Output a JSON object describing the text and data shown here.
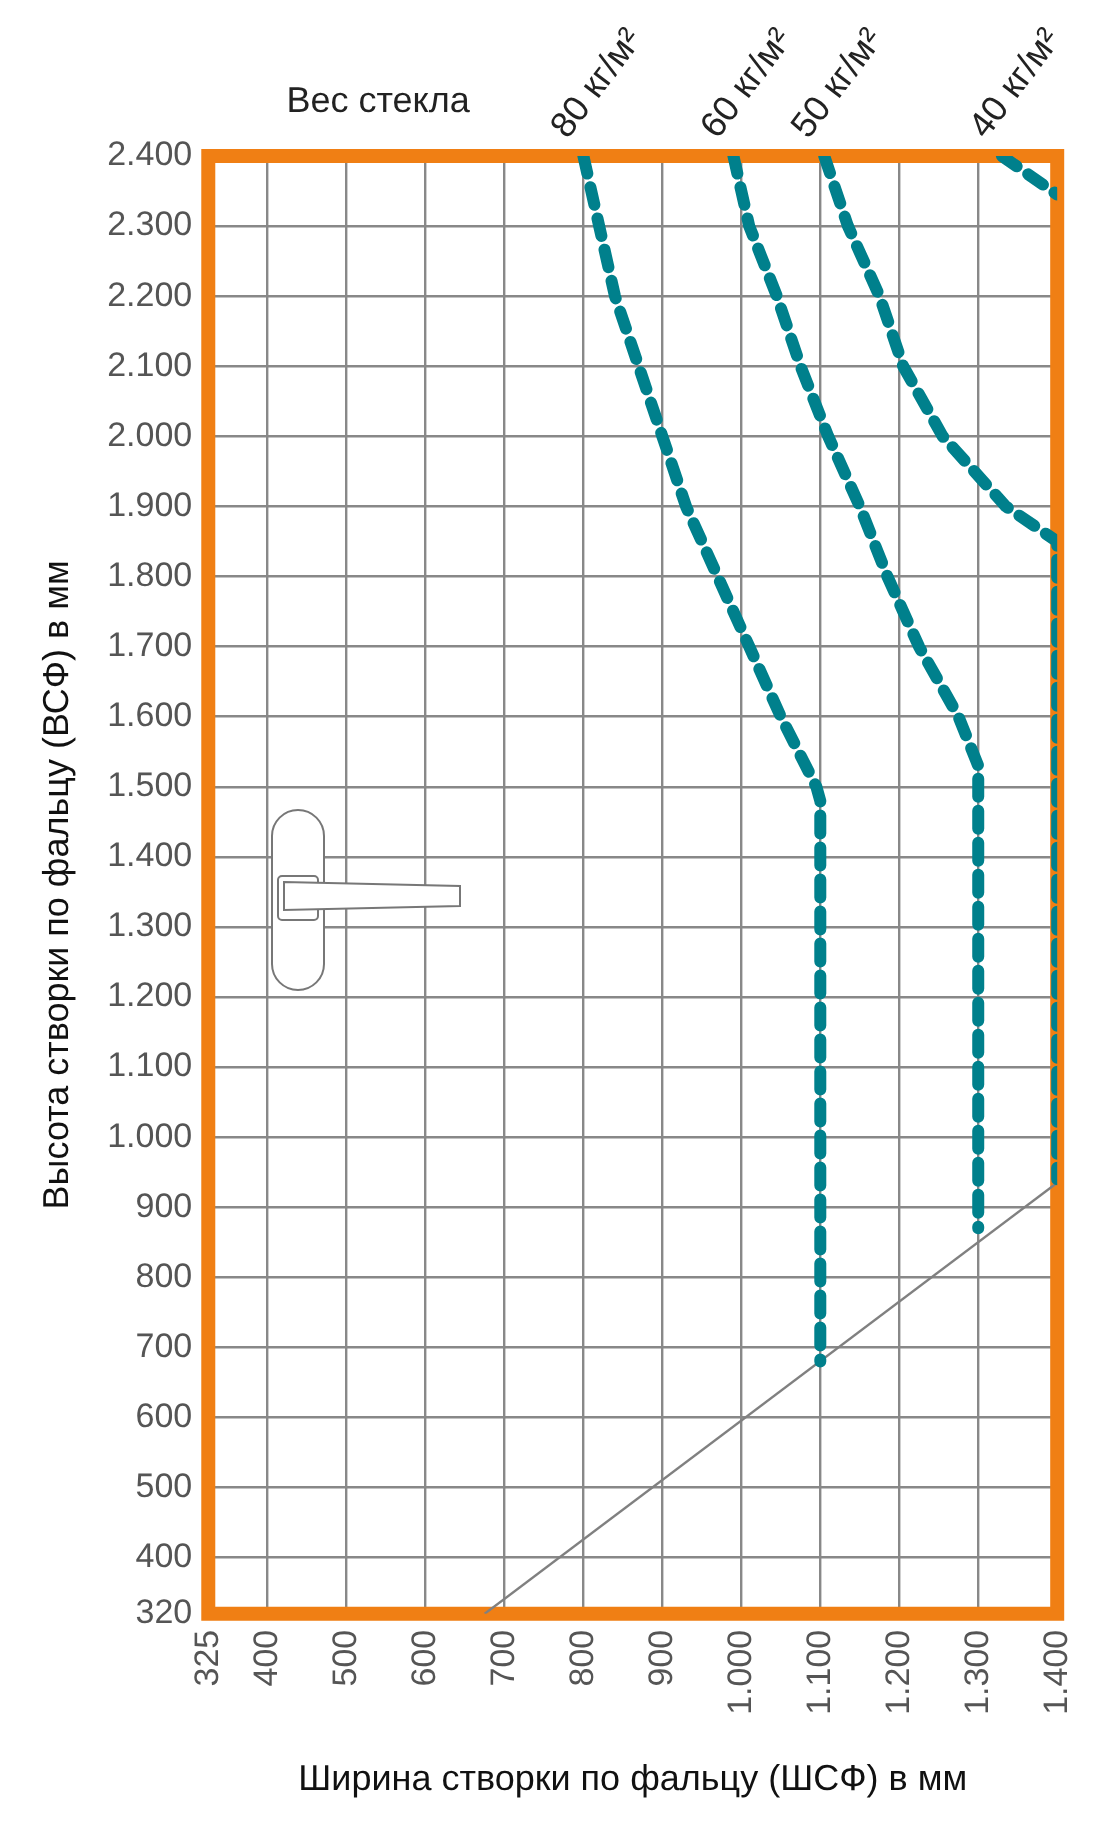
{
  "chart_data": {
    "type": "line",
    "legend_title": "Вес стекла",
    "xlabel": "Ширина створки по фальцу (ШСФ) в мм",
    "ylabel": "Высота створки по фальцу (ВСФ) в мм",
    "xlim": [
      325,
      1400
    ],
    "xticks": [
      325,
      400,
      500,
      600,
      700,
      800,
      900,
      {
        "value": 1000,
        "label": "1.000"
      },
      {
        "value": 1100,
        "label": "1.100"
      },
      {
        "value": 1200,
        "label": "1.200"
      },
      {
        "value": 1300,
        "label": "1.300"
      },
      {
        "value": 1400,
        "label": "1.400"
      }
    ],
    "ylim": [
      320,
      2400
    ],
    "yticks": [
      320,
      400,
      500,
      600,
      700,
      800,
      900,
      {
        "value": 1000,
        "label": "1.000"
      },
      {
        "value": 1100,
        "label": "1.100"
      },
      {
        "value": 1200,
        "label": "1.200"
      },
      {
        "value": 1300,
        "label": "1.300"
      },
      {
        "value": 1400,
        "label": "1.400"
      },
      {
        "value": 1500,
        "label": "1.500"
      },
      {
        "value": 1600,
        "label": "1.600"
      },
      {
        "value": 1700,
        "label": "1.700"
      },
      {
        "value": 1800,
        "label": "1.800"
      },
      {
        "value": 1900,
        "label": "1.900"
      },
      {
        "value": 2000,
        "label": "2.000"
      },
      {
        "value": 2100,
        "label": "2.100"
      },
      {
        "value": 2200,
        "label": "2.200"
      },
      {
        "value": 2300,
        "label": "2.300"
      },
      {
        "value": 2400,
        "label": "2.400"
      }
    ],
    "grid": true,
    "legend": false,
    "marker": "none",
    "line_style": "dashed",
    "series": [
      {
        "name": "80 кг/м²",
        "color": "#00808c",
        "x": [
          800,
          820,
          840,
          870,
          900,
          930,
          970,
          1010,
          1050,
          1095,
          1100,
          1100
        ],
        "values": [
          2400,
          2300,
          2200,
          2100,
          2000,
          1900,
          1800,
          1700,
          1600,
          1500,
          1480,
          680
        ]
      },
      {
        "name": "60 кг/м²",
        "color": "#00808c",
        "x": [
          990,
          1010,
          1045,
          1075,
          1110,
          1150,
          1185,
          1225,
          1275,
          1300,
          1300
        ],
        "values": [
          2400,
          2300,
          2200,
          2100,
          2000,
          1900,
          1800,
          1700,
          1600,
          1530,
          870
        ]
      },
      {
        "name": "50 кг/м²",
        "color": "#00808c",
        "x": [
          1105,
          1135,
          1175,
          1205,
          1255,
          1335,
          1400,
          1400
        ],
        "values": [
          2400,
          2300,
          2200,
          2100,
          2000,
          1900,
          1850,
          940
        ]
      },
      {
        "name": "40 кг/м²",
        "color": "#00808c",
        "x": [
          1330,
          1400
        ],
        "values": [
          2400,
          2345
        ]
      },
      {
        "color": "#808080",
        "line_style": "solid",
        "x": [
          675,
          1400
        ],
        "values": [
          320,
          935
        ]
      }
    ]
  }
}
